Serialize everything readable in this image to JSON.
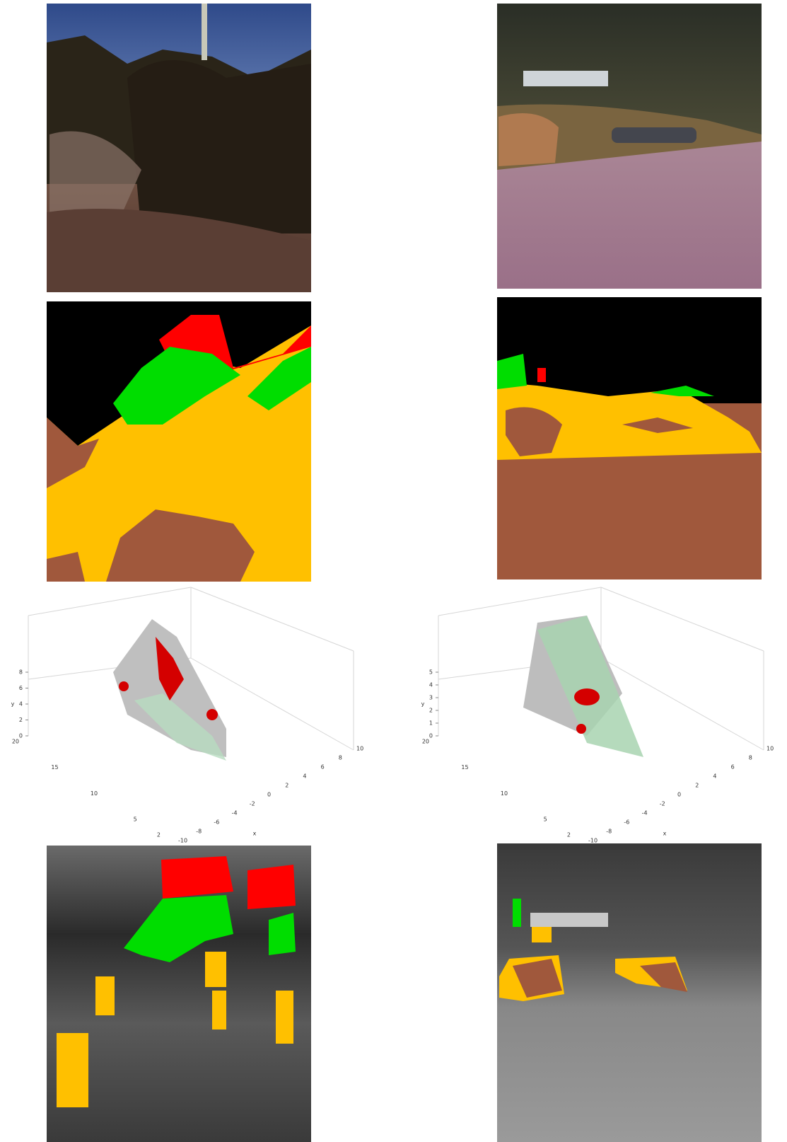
{
  "plots": [
    {
      "axis_label_vertical": "y",
      "axis_label_horizontal": "x",
      "vertical_ticks": [
        0,
        2,
        4,
        6,
        8
      ],
      "depth_ticks": [
        2,
        5,
        10,
        15,
        20
      ],
      "horizontal_ticks": [
        -10,
        -8,
        -6,
        -4,
        -2,
        0,
        2,
        4,
        6,
        8,
        10
      ]
    },
    {
      "axis_label_vertical": "y",
      "axis_label_horizontal": "x",
      "vertical_ticks": [
        0,
        1,
        2,
        3,
        4,
        5
      ],
      "depth_ticks": [
        2,
        5,
        10,
        15,
        20
      ],
      "horizontal_ticks": [
        -10,
        -8,
        -6,
        -4,
        -2,
        0,
        2,
        4,
        6,
        8,
        10
      ]
    }
  ]
}
